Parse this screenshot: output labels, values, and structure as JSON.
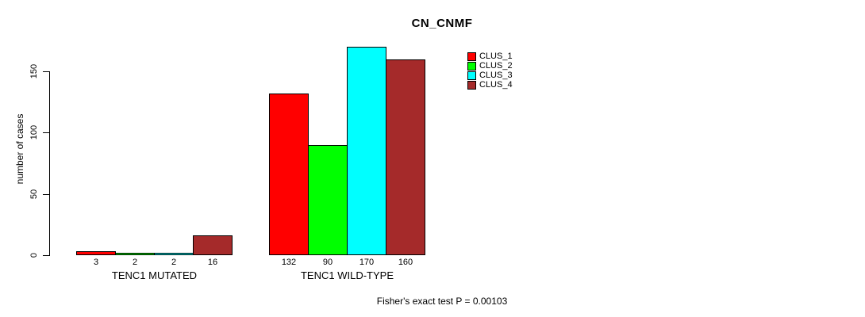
{
  "chart_data": {
    "type": "bar",
    "title": "CN_CNMF",
    "ylabel": "number of cases",
    "xlabel": "",
    "annotation": "Fisher's exact test P = 0.00103",
    "yticks": [
      0,
      50,
      100,
      150
    ],
    "ylim": [
      0,
      175
    ],
    "grid": false,
    "legend_position": "upper-right-inside",
    "bar_borders": "#000000",
    "groups": [
      {
        "label": "TENC1 MUTATED",
        "values": [
          3,
          2,
          2,
          16
        ]
      },
      {
        "label": "TENC1 WILD-TYPE",
        "values": [
          132,
          90,
          170,
          160
        ]
      }
    ],
    "series": [
      {
        "name": "CLUS_1",
        "color": "#ff0000"
      },
      {
        "name": "CLUS_2",
        "color": "#00ff00"
      },
      {
        "name": "CLUS_3",
        "color": "#00ffff"
      },
      {
        "name": "CLUS_4",
        "color": "#a52a2a"
      }
    ]
  }
}
